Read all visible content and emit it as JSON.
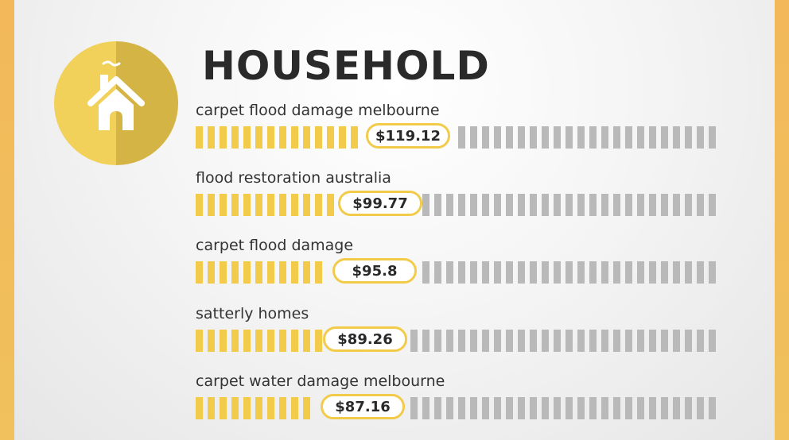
{
  "header": {
    "title": "HOUSEHOLD",
    "icon": "house-icon"
  },
  "colors": {
    "accent": "#f2cb4a",
    "badge_light": "#f2d15a",
    "badge_dark": "#d4b445",
    "track": "#b9b9b9",
    "frame": "#f0b95a"
  },
  "chart_data": {
    "type": "bar",
    "orientation": "horizontal",
    "categories": [
      "carpet flood damage melbourne",
      "flood restoration australia",
      "carpet flood damage",
      "satterly homes",
      "carpet water damage melbourne"
    ],
    "values": [
      119.12,
      99.77,
      95.8,
      89.26,
      87.16
    ],
    "value_labels": [
      "$119.12",
      "$99.77",
      "$95.8",
      "$89.26",
      "$87.16"
    ],
    "title": "HOUSEHOLD"
  }
}
